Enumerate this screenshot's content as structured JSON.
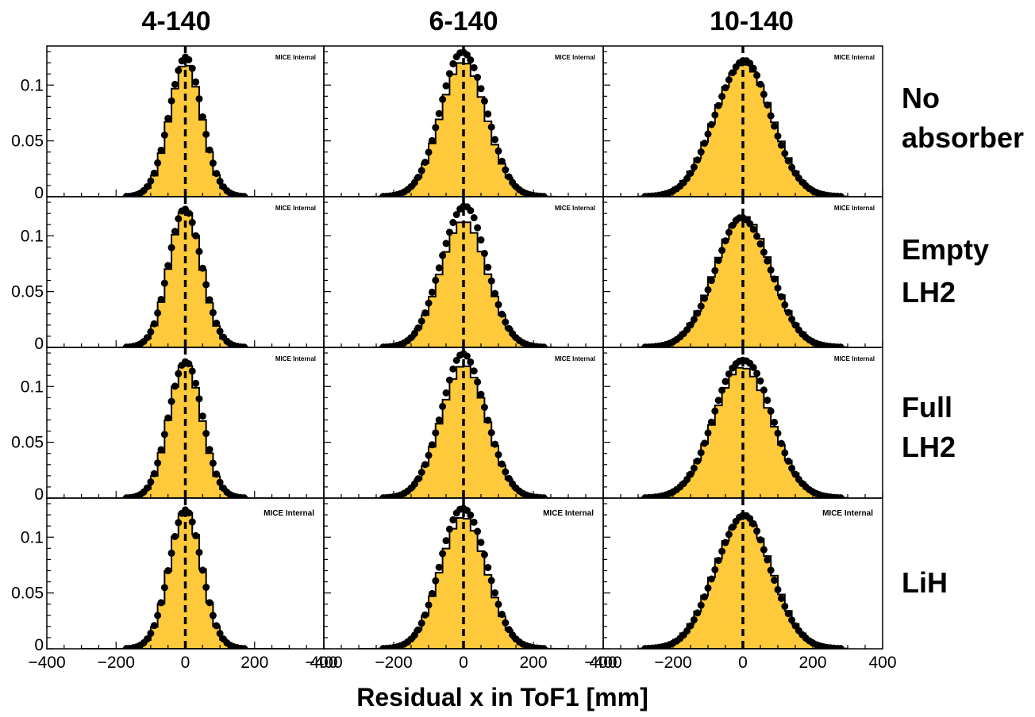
{
  "colors": {
    "hist_fill": "#fec93a",
    "hist_line": "#000000",
    "data_points": "#000000",
    "mean_line": "#000000",
    "frame": "#000000"
  },
  "column_titles": [
    "4-140",
    "6-140",
    "10-140"
  ],
  "row_labels": [
    [
      "No",
      "absorber"
    ],
    [
      "Empty",
      "LH2"
    ],
    [
      "Full",
      "LH2"
    ],
    [
      "LiH"
    ]
  ],
  "x_axis_label": "Residual x in ToF1 [mm]",
  "watermark": "MICE Internal",
  "x_tick_labels": [
    "−400",
    "−200",
    "0",
    "200",
    "400"
  ],
  "y_tick_labels": [
    "0",
    "0.05",
    "0.1"
  ],
  "chart_data": {
    "type": "histogram-grid",
    "description_of_layout": "4 rows (absorber) x 3 columns (momentum setting); yellow filled histogram = simulation, black points = data, dashed vertical line at x = 0",
    "xlim": [
      -400,
      400
    ],
    "ylim": [
      0,
      0.135
    ],
    "x_ticks": [
      -400,
      -200,
      0,
      200,
      400
    ],
    "y_ticks": [
      0,
      0.05,
      0.1
    ],
    "grid": false,
    "panels": [
      {
        "row": "No absorber",
        "column": "4-140",
        "sigma_mc": 47,
        "sigma_data": 48,
        "peak_mc": 0.12,
        "peak_data": 0.123
      },
      {
        "row": "No absorber",
        "column": "6-140",
        "sigma_mc": 66,
        "sigma_data": 65,
        "peak_mc": 0.12,
        "peak_data": 0.131
      },
      {
        "row": "No absorber",
        "column": "10-140",
        "sigma_mc": 82,
        "sigma_data": 80,
        "peak_mc": 0.12,
        "peak_data": 0.121
      },
      {
        "row": "Empty LH2",
        "column": "4-140",
        "sigma_mc": 47,
        "sigma_data": 48,
        "peak_mc": 0.122,
        "peak_data": 0.124
      },
      {
        "row": "Empty LH2",
        "column": "6-140",
        "sigma_mc": 66,
        "sigma_data": 65,
        "peak_mc": 0.115,
        "peak_data": 0.127
      },
      {
        "row": "Empty LH2",
        "column": "10-140",
        "sigma_mc": 82,
        "sigma_data": 80,
        "peak_mc": 0.116,
        "peak_data": 0.115
      },
      {
        "row": "Full LH2",
        "column": "4-140",
        "sigma_mc": 47,
        "sigma_data": 48,
        "peak_mc": 0.123,
        "peak_data": 0.124
      },
      {
        "row": "Full LH2",
        "column": "6-140",
        "sigma_mc": 66,
        "sigma_data": 65,
        "peak_mc": 0.118,
        "peak_data": 0.127
      },
      {
        "row": "Full LH2",
        "column": "10-140",
        "sigma_mc": 82,
        "sigma_data": 80,
        "peak_mc": 0.118,
        "peak_data": 0.126
      },
      {
        "row": "LiH",
        "column": "4-140",
        "sigma_mc": 47,
        "sigma_data": 48,
        "peak_mc": 0.124,
        "peak_data": 0.122
      },
      {
        "row": "LiH",
        "column": "6-140",
        "sigma_mc": 66,
        "sigma_data": 65,
        "peak_mc": 0.118,
        "peak_data": 0.128
      },
      {
        "row": "LiH",
        "column": "10-140",
        "sigma_mc": 82,
        "sigma_data": 80,
        "peak_mc": 0.118,
        "peak_data": 0.118
      }
    ]
  }
}
